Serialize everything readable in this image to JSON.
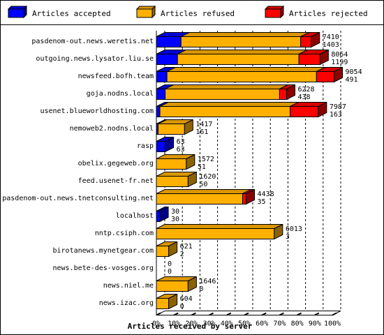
{
  "chart_data": {
    "type": "bar",
    "stacked": true,
    "orientation": "horizontal",
    "style": "3d",
    "xlabel": "Articles received by server",
    "ylabel": "",
    "xlim": [
      0,
      100
    ],
    "x_unit": "%",
    "x_ticks": [
      "0%",
      "10%",
      "20%",
      "30%",
      "40%",
      "50%",
      "60%",
      "70%",
      "80%",
      "90%",
      "100%"
    ],
    "grid": "vertical-dashed",
    "legend": "top",
    "series": [
      {
        "name": "Articles accepted",
        "color": "#0000ff"
      },
      {
        "name": "Articles refused",
        "color": "#ffb000"
      },
      {
        "name": "Articles rejected",
        "color": "#ff0000"
      }
    ],
    "categories": [
      "pasdenom-out.news.weretis.net",
      "outgoing.news.lysator.liu.se",
      "newsfeed.bofh.team",
      "goja.nodns.local",
      "usenet.blueworldhosting.com",
      "nemoweb2.nodns.local",
      "rasp",
      "obelix.gegeweb.org",
      "feed.usenet-fr.net",
      "pasdenom-out.news.tnetconsulting.net",
      "localhost",
      "nntp.csiph.com",
      "birotanews.mynetgear.com",
      "news.bete-des-vosges.org",
      "news.niel.me",
      "news.izac.org"
    ],
    "data_labels_top": [
      "7410",
      "8064",
      "9054",
      "6228",
      "7987",
      "1417",
      "63",
      "1572",
      "1620",
      "4438",
      "30",
      "6013",
      "621",
      "0",
      "1646",
      "604"
    ],
    "data_labels_bottom": [
      "1403",
      "1199",
      "491",
      "438",
      "163",
      "161",
      "63",
      "51",
      "50",
      "35",
      "30",
      "3",
      "2",
      "0",
      "0",
      "0"
    ],
    "values_pct": [
      [
        14,
        68,
        6
      ],
      [
        12,
        69,
        12
      ],
      [
        6,
        85,
        10
      ],
      [
        5,
        65,
        4
      ],
      [
        2,
        74,
        16
      ],
      [
        1,
        15,
        0
      ],
      [
        5,
        0,
        0
      ],
      [
        0,
        17,
        0
      ],
      [
        0,
        18,
        0
      ],
      [
        0,
        49,
        2
      ],
      [
        2,
        0,
        0
      ],
      [
        0,
        67,
        0
      ],
      [
        0,
        7,
        0
      ],
      [
        0,
        0,
        0
      ],
      [
        0,
        18,
        0
      ],
      [
        0,
        7,
        0
      ]
    ]
  },
  "colors": {
    "accepted": "#0000ff",
    "refused": "#ffb000",
    "rejected": "#ff0000",
    "grid": "#000000"
  }
}
